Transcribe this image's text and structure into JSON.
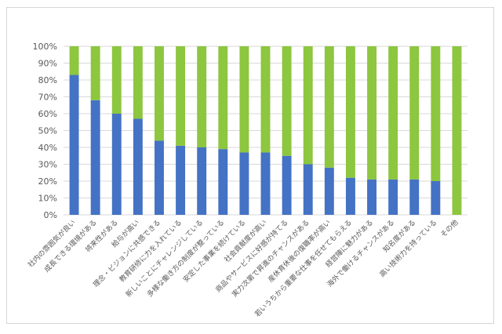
{
  "chart_data": {
    "type": "bar",
    "stacked": true,
    "ylim": [
      0,
      100
    ],
    "y_ticks": [
      "0%",
      "10%",
      "20%",
      "30%",
      "40%",
      "50%",
      "60%",
      "70%",
      "80%",
      "90%",
      "100%"
    ],
    "grid": true,
    "legend": "none",
    "categories": [
      "社内の雰囲気が良い",
      "成長できる環境がある",
      "将来性がある",
      "給与が高い",
      "理念・ビジョンに共感できる",
      "教育研修に力を入れている",
      "新しいことにチャレンジしている",
      "多様な働き方の制度が整っている",
      "安定した事業を続けている",
      "社会貢献度が高い",
      "商品やサービスに好感が持てる",
      "実力次第で昇進のチャンスがある",
      "産休育休後の復職率が高い",
      "若いうちから重要な仕事を任せてもらえる",
      "経営陣に魅力がある",
      "海外で働けるチャンスがある",
      "知名度がある",
      "高い技術力を持っている",
      "その他"
    ],
    "series": [
      {
        "color": "#4472C4",
        "values": [
          83,
          68,
          60,
          57,
          44,
          41,
          40,
          39,
          37,
          37,
          35,
          30,
          28,
          22,
          21,
          21,
          21,
          20,
          0
        ]
      },
      {
        "color": "#8DC63F",
        "values": [
          17,
          32,
          40,
          43,
          56,
          59,
          60,
          61,
          63,
          63,
          65,
          70,
          72,
          78,
          79,
          79,
          79,
          80,
          100
        ]
      }
    ]
  }
}
